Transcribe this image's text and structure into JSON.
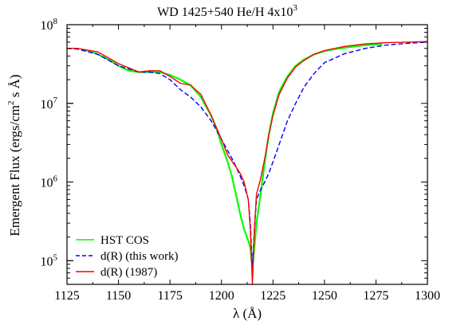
{
  "chart_data": {
    "type": "line",
    "title": "WD 1425+540    He/H 4x10",
    "title_superscript": "3",
    "xlabel": "λ (Å)",
    "ylabel": "Emergent Flux (ergs/cm",
    "ylabel_superscript": "2",
    "ylabel_suffix": " s Å)",
    "xlim": [
      1125,
      1300
    ],
    "ylim": [
      50000,
      100000000
    ],
    "y_scale": "log",
    "grid": false,
    "legend_position": "bottom-left",
    "x_ticks": [
      {
        "value": 1125,
        "label": "1125"
      },
      {
        "value": 1150,
        "label": "1150"
      },
      {
        "value": 1175,
        "label": "1175"
      },
      {
        "value": 1200,
        "label": "1200"
      },
      {
        "value": 1225,
        "label": "1225"
      },
      {
        "value": 1250,
        "label": "1250"
      },
      {
        "value": 1275,
        "label": "1275"
      },
      {
        "value": 1300,
        "label": "1300"
      }
    ],
    "y_ticks": [
      {
        "value": 100000,
        "base": "10",
        "exp": "5"
      },
      {
        "value": 1000000,
        "base": "10",
        "exp": "6"
      },
      {
        "value": 10000000,
        "base": "10",
        "exp": "7"
      },
      {
        "value": 100000000,
        "base": "10",
        "exp": "8"
      }
    ],
    "series": [
      {
        "name": "HST COS",
        "color": "#00ff00",
        "style": "solid",
        "x": [
          1132,
          1135,
          1140,
          1145,
          1150,
          1155,
          1160,
          1165,
          1170,
          1175,
          1180,
          1185,
          1190,
          1195,
          1198,
          1200,
          1203,
          1205,
          1207,
          1209,
          1211,
          1213,
          1214,
          1215,
          1216,
          1217,
          1219,
          1221,
          1223,
          1225,
          1228,
          1232,
          1236,
          1240,
          1245,
          1250,
          1255,
          1260,
          1265,
          1270,
          1275,
          1278
        ],
        "y": [
          48000000,
          47000000,
          42000000,
          36000000,
          30000000,
          26000000,
          25000000,
          25000000,
          25000000,
          23000000,
          20000000,
          17000000,
          12000000,
          7000000,
          4500000,
          3000000,
          1800000,
          1200000,
          700000,
          400000,
          250000,
          180000,
          150000,
          80000,
          150000,
          300000,
          700000,
          1800000,
          4000000,
          7500000,
          14000000,
          22000000,
          30000000,
          36000000,
          42000000,
          46000000,
          49000000,
          51000000,
          53000000,
          55000000,
          56000000,
          57000000
        ]
      },
      {
        "name": "d(R) (this work)",
        "color": "#0000ff",
        "style": "dashed",
        "x": [
          1125,
          1130,
          1140,
          1150,
          1160,
          1165,
          1170,
          1175,
          1180,
          1185,
          1190,
          1195,
          1200,
          1203,
          1206,
          1209,
          1211,
          1213,
          1214,
          1215,
          1216,
          1217,
          1219,
          1221,
          1223,
          1225,
          1228,
          1232,
          1236,
          1240,
          1245,
          1250,
          1260,
          1270,
          1280,
          1290,
          1300
        ],
        "y": [
          50000000,
          49000000,
          42000000,
          30000000,
          25000000,
          25000000,
          24000000,
          20000000,
          15000000,
          12000000,
          9000000,
          6000000,
          3500000,
          2500000,
          1800000,
          1200000,
          900000,
          600000,
          300000,
          80000,
          250000,
          600000,
          800000,
          1000000,
          1300000,
          1800000,
          3000000,
          6000000,
          10000000,
          16000000,
          24000000,
          33000000,
          43000000,
          50000000,
          55000000,
          58000000,
          60000000
        ]
      },
      {
        "name": "d(R) (1987)",
        "color": "#ff0000",
        "style": "solid",
        "x": [
          1125,
          1130,
          1140,
          1150,
          1160,
          1165,
          1170,
          1175,
          1180,
          1185,
          1190,
          1195,
          1200,
          1203,
          1206,
          1209,
          1211,
          1213,
          1214,
          1215,
          1216,
          1217,
          1219,
          1221,
          1223,
          1225,
          1228,
          1232,
          1236,
          1240,
          1245,
          1250,
          1260,
          1270,
          1280,
          1290,
          1300
        ],
        "y": [
          50000000,
          50000000,
          45000000,
          32000000,
          25000000,
          26000000,
          26000000,
          22000000,
          18000000,
          17000000,
          13000000,
          7000000,
          3500000,
          2200000,
          1700000,
          1300000,
          1000000,
          600000,
          250000,
          50000,
          250000,
          700000,
          1100000,
          2000000,
          4000000,
          7000000,
          13000000,
          21000000,
          29000000,
          35000000,
          42000000,
          47000000,
          53000000,
          57000000,
          59000000,
          60000000,
          61000000
        ]
      }
    ]
  }
}
